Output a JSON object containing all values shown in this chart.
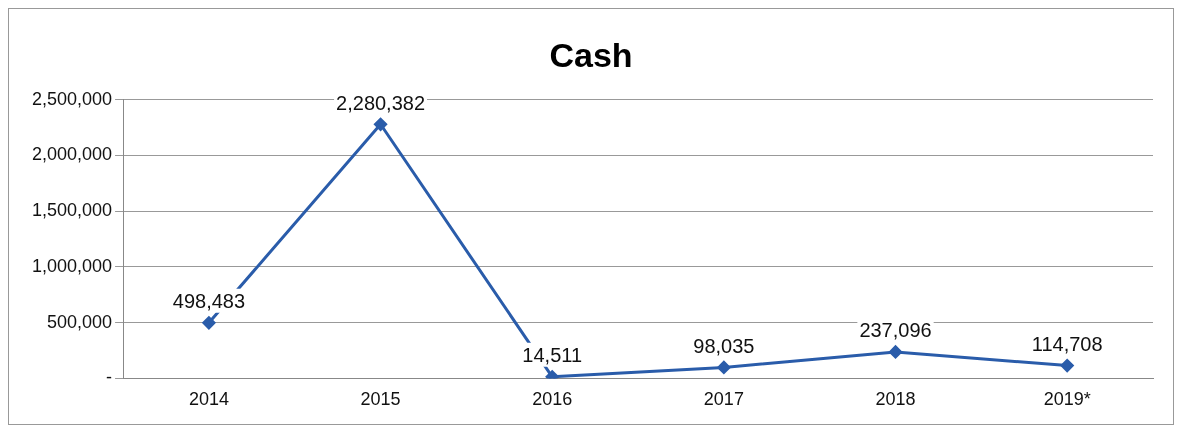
{
  "chart_data": {
    "type": "line",
    "title": "Cash",
    "categories": [
      "2014",
      "2015",
      "2016",
      "2017",
      "2018",
      "2019*"
    ],
    "series": [
      {
        "color": "#2a5caa",
        "values": [
          498483,
          2280382,
          14511,
          98035,
          237096,
          114708
        ],
        "value_labels": [
          "498,483",
          "2,280,382",
          "14,511",
          "98,035",
          "237,096",
          "114,708"
        ]
      }
    ],
    "ylim": [
      0,
      2500000
    ],
    "yticks": [
      {
        "value": 0,
        "label": "-"
      },
      {
        "value": 500000,
        "label": "500,000"
      },
      {
        "value": 1000000,
        "label": "1,000,000"
      },
      {
        "value": 1500000,
        "label": "1,500,000"
      },
      {
        "value": 2000000,
        "label": "2,000,000"
      },
      {
        "value": 2500000,
        "label": "2,500,000"
      }
    ],
    "grid": "y",
    "legend": false,
    "marker": "diamond",
    "line_style": "solid"
  }
}
